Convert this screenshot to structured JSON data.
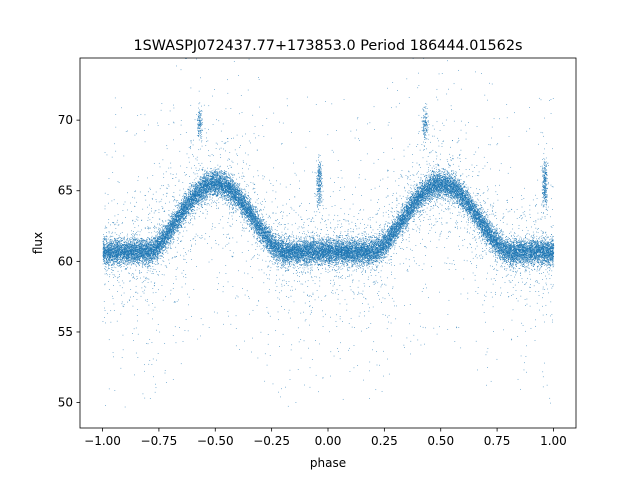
{
  "chart_data": {
    "type": "scatter",
    "title": "1SWASPJ072437.77+173853.0 Period 186444.01562s",
    "xlabel": "phase",
    "ylabel": "flux",
    "xlim": [
      -1.1,
      1.1
    ],
    "ylim": [
      48.2,
      74.4
    ],
    "xticks": [
      -1.0,
      -0.75,
      -0.5,
      -0.25,
      0.0,
      0.25,
      0.5,
      0.75,
      1.0
    ],
    "xtick_labels": [
      "−1.00",
      "−0.75",
      "−0.50",
      "−0.25",
      "0.00",
      "0.25",
      "0.50",
      "0.75",
      "1.00"
    ],
    "yticks": [
      50,
      55,
      60,
      65,
      70
    ],
    "ytick_labels": [
      "50",
      "55",
      "60",
      "65",
      "70"
    ],
    "grid": false,
    "marker_color": "#1f77b4",
    "series": [
      {
        "phase_min": -1.0,
        "phase_max": 1.0,
        "point_count": 30000,
        "baseline_flux": 60.7,
        "peak_flux": 65.5,
        "peak_phases": [
          -0.5,
          0.5
        ],
        "flat_minimum_phases": [
          [
            -1.0,
            -0.8
          ],
          [
            -0.2,
            0.2
          ],
          [
            0.8,
            1.0
          ]
        ],
        "secondary_clumps": [
          {
            "phase": -0.57,
            "flux": 69.8
          },
          {
            "phase": -0.04,
            "flux": 66.2
          },
          {
            "phase": -0.04,
            "flux": 65.0
          },
          {
            "phase": 0.43,
            "flux": 69.8
          },
          {
            "phase": 0.96,
            "flux": 66.2
          },
          {
            "phase": 0.96,
            "flux": 65.0
          }
        ]
      }
    ]
  }
}
